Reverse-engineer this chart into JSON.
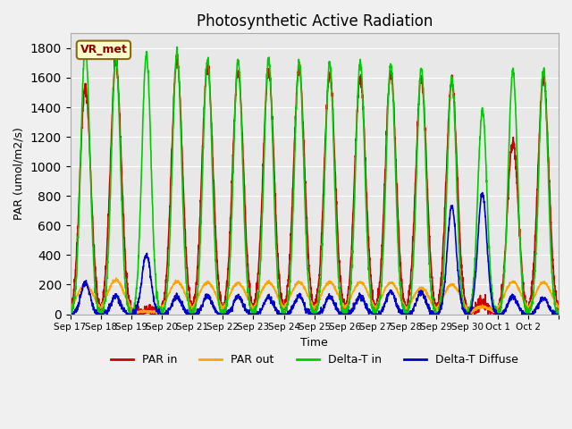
{
  "title": "Photosynthetic Active Radiation",
  "ylabel": "PAR (umol/m2/s)",
  "xlabel": "Time",
  "ylim": [
    0,
    1900
  ],
  "yticks": [
    0,
    200,
    400,
    600,
    800,
    1000,
    1200,
    1400,
    1600,
    1800
  ],
  "x_tick_labels": [
    "Sep 17",
    "Sep 18",
    "Sep 19",
    "Sep 20",
    "Sep 21",
    "Sep 22",
    "Sep 23",
    "Sep 24",
    "Sep 25",
    "Sep 26",
    "Sep 27",
    "Sep 28",
    "Sep 29",
    "Sep 30",
    "Oct 1",
    "Oct 2",
    ""
  ],
  "series": {
    "PAR_in": {
      "color": "#cc0000",
      "lw": 1.2
    },
    "PAR_out": {
      "color": "#ffa500",
      "lw": 1.2
    },
    "Delta_T_in": {
      "color": "#00cc00",
      "lw": 1.2
    },
    "Delta_T_Diffuse": {
      "color": "#0000cc",
      "lw": 1.2
    }
  },
  "legend_labels": [
    "PAR in",
    "PAR out",
    "Delta-T in",
    "Delta-T Diffuse"
  ],
  "legend_colors": [
    "#cc0000",
    "#ffa500",
    "#00cc00",
    "#0000cc"
  ],
  "vr_met_label": "VR_met",
  "background_color": "#e8e8e8",
  "grid_color": "#ffffff",
  "n_days": 16,
  "day_peaks": {
    "PAR_in": [
      1530,
      1700,
      25,
      1720,
      1680,
      1640,
      1650,
      1660,
      1620,
      1600,
      1630,
      1590,
      1580,
      80,
      1170,
      1600
    ],
    "PAR_out": [
      200,
      230,
      20,
      220,
      215,
      210,
      215,
      215,
      215,
      215,
      215,
      175,
      200,
      50,
      220,
      215
    ],
    "Delta_T_in": [
      1820,
      1740,
      1760,
      1770,
      1730,
      1720,
      1720,
      1710,
      1700,
      1700,
      1690,
      1660,
      1600,
      1380,
      1650,
      1650
    ],
    "Delta_T_Diffuse": [
      210,
      125,
      400,
      120,
      125,
      120,
      115,
      120,
      120,
      120,
      155,
      150,
      730,
      820,
      120,
      110
    ]
  }
}
